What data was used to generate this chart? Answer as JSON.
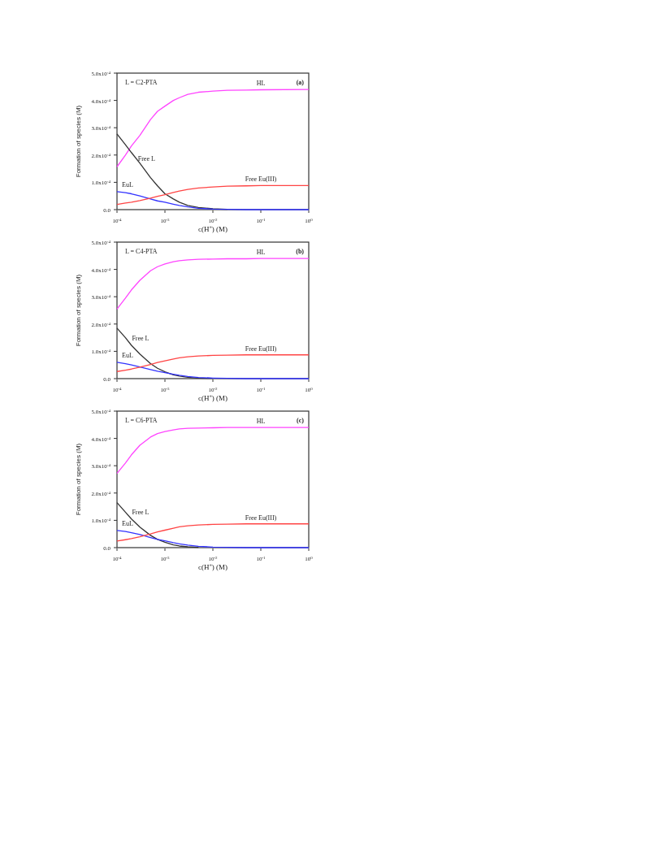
{
  "chart_data": [
    {
      "type": "line",
      "title": "L = C2-PTA",
      "annotations": [
        "(a)"
      ],
      "xlabel": "c(H$^{+}$) (M)",
      "ylabel": "Formation of species  (M)",
      "log": "x",
      "legend": false,
      "grid": false,
      "marker": "none",
      "line_style": "solid",
      "x": [
        0.0001,
        0.00015,
        0.0002,
        0.0003,
        0.0005,
        0.0007,
        0.001,
        0.0015,
        0.002,
        0.003,
        0.005,
        0.01,
        0.02,
        0.05,
        0.1,
        1
      ],
      "xlim": [
        0.0001,
        1
      ],
      "xticks": [
        {
          "value": 0.0001,
          "label": "10$^{-4}$"
        },
        {
          "value": 0.001,
          "label": "10$^{-3}$"
        },
        {
          "value": 0.01,
          "label": "10$^{-2}$"
        },
        {
          "value": 0.1,
          "label": "10$^{-1}$"
        },
        {
          "value": 1,
          "label": "10$^{0}$"
        }
      ],
      "ylim": [
        0,
        0.0005
      ],
      "yticks": [
        {
          "value": 0,
          "label": "0.0"
        },
        {
          "value": 0.0001,
          "label": "1.0x10$^{-4}$"
        },
        {
          "value": 0.0002,
          "label": "2.0x10$^{-4}$"
        },
        {
          "value": 0.0003,
          "label": "3.0x10$^{-4}$"
        },
        {
          "value": 0.0004,
          "label": "4.0x10$^{-4}$"
        },
        {
          "value": 0.0005,
          "label": "5.0x10$^{-4}$"
        }
      ],
      "series": [
        {
          "name": "HL",
          "color": "#ff44ff",
          "values": [
            0.000157,
            0.0002,
            0.000233,
            0.000272,
            0.00033,
            0.00036,
            0.000379,
            0.0004,
            0.00041,
            0.000422,
            0.00043,
            0.000434,
            0.000437,
            0.000438,
            0.000439,
            0.00044
          ]
        },
        {
          "name": "Free L",
          "color": "#333333",
          "values": [
            0.000277,
            0.000238,
            0.000209,
            0.00017,
            0.000117,
            8.7e-05,
            5.8e-05,
            3.9e-05,
            2.7e-05,
            1.5e-05,
            8e-06,
            3e-06,
            1e-06,
            null,
            null,
            null
          ]
        },
        {
          "name": "EuL",
          "color": "#3333ff",
          "values": [
            6.6e-05,
            6.2e-05,
            5.8e-05,
            5e-05,
            3.9e-05,
            3.2e-05,
            2.7e-05,
            2e-05,
            1.5e-05,
            1e-05,
            5e-06,
            2e-06,
            1e-06,
            0,
            0,
            0
          ]
        },
        {
          "name": "Free Eu(III)",
          "color": "#ff4444",
          "values": [
            1.9e-05,
            2.4e-05,
            2.7e-05,
            3.3e-05,
            4.2e-05,
            4.9e-05,
            5.5e-05,
            6.3e-05,
            6.8e-05,
            7.4e-05,
            7.9e-05,
            8.3e-05,
            8.6e-05,
            8.7e-05,
            8.8e-05,
            8.8e-05
          ]
        }
      ]
    },
    {
      "type": "line",
      "title": "L = C4-PTA",
      "annotations": [
        "(b)"
      ],
      "xlabel": "c(H$^{+}$) (M)",
      "ylabel": "Formation of species  (M)",
      "log": "x",
      "legend": false,
      "grid": false,
      "marker": "none",
      "line_style": "solid",
      "x": [
        0.0001,
        0.00015,
        0.0002,
        0.0003,
        0.0005,
        0.0007,
        0.001,
        0.0015,
        0.002,
        0.003,
        0.005,
        0.01,
        0.02,
        0.05,
        0.1,
        1
      ],
      "xlim": [
        0.0001,
        1
      ],
      "xticks": [
        {
          "value": 0.0001,
          "label": "10$^{-4}$"
        },
        {
          "value": 0.001,
          "label": "10$^{-3}$"
        },
        {
          "value": 0.01,
          "label": "10$^{-2}$"
        },
        {
          "value": 0.1,
          "label": "10$^{-1}$"
        },
        {
          "value": 1,
          "label": "10$^{0}$"
        }
      ],
      "ylim": [
        0,
        0.0005
      ],
      "yticks": [
        {
          "value": 0,
          "label": "0.0"
        },
        {
          "value": 0.0001,
          "label": "1.0x10$^{-4}$"
        },
        {
          "value": 0.0002,
          "label": "2.0x10$^{-4}$"
        },
        {
          "value": 0.0003,
          "label": "3.0x10$^{-4}$"
        },
        {
          "value": 0.0004,
          "label": "4.0x10$^{-4}$"
        },
        {
          "value": 0.0005,
          "label": "5.0x10$^{-4}$"
        }
      ],
      "series": [
        {
          "name": "HL",
          "color": "#ff44ff",
          "values": [
            0.000255,
            0.000295,
            0.000325,
            0.00036,
            0.000395,
            0.00041,
            0.00042,
            0.000428,
            0.000432,
            0.000435,
            0.000437,
            0.000438,
            0.000439,
            0.000439,
            0.00044,
            0.00044
          ]
        },
        {
          "name": "Free L",
          "color": "#333333",
          "values": [
            0.000185,
            0.00015,
            0.000122,
            9e-05,
            5.5e-05,
            3.8e-05,
            2.5e-05,
            1.4e-05,
            9e-06,
            5e-06,
            2e-06,
            1e-06,
            null,
            null,
            null,
            null
          ]
        },
        {
          "name": "EuL",
          "color": "#3333ff",
          "values": [
            6e-05,
            5.5e-05,
            5e-05,
            4.3e-05,
            3.3e-05,
            2.7e-05,
            2.2e-05,
            1.6e-05,
            1.2e-05,
            8e-06,
            4e-06,
            2e-06,
            1e-06,
            0,
            0,
            0
          ]
        },
        {
          "name": "Free Eu(III)",
          "color": "#ff4444",
          "values": [
            2.6e-05,
            3.1e-05,
            3.5e-05,
            4.2e-05,
            5.2e-05,
            5.9e-05,
            6.5e-05,
            7.2e-05,
            7.6e-05,
            8e-05,
            8.3e-05,
            8.5e-05,
            8.6e-05,
            8.7e-05,
            8.7e-05,
            8.7e-05
          ]
        }
      ]
    },
    {
      "type": "line",
      "title": "L = C6-PTA",
      "annotations": [
        "(c)"
      ],
      "xlabel": "c(H$^{+}$) (M)",
      "ylabel": "Formation of species  (M)",
      "log": "x",
      "legend": false,
      "grid": false,
      "marker": "none",
      "line_style": "solid",
      "x": [
        0.0001,
        0.00015,
        0.0002,
        0.0003,
        0.0005,
        0.0007,
        0.001,
        0.0015,
        0.002,
        0.003,
        0.005,
        0.01,
        0.02,
        0.05,
        0.1,
        1
      ],
      "xlim": [
        0.0001,
        1
      ],
      "xticks": [
        {
          "value": 0.0001,
          "label": "10$^{-4}$"
        },
        {
          "value": 0.001,
          "label": "10$^{-3}$"
        },
        {
          "value": 0.01,
          "label": "10$^{-2}$"
        },
        {
          "value": 0.1,
          "label": "10$^{-1}$"
        },
        {
          "value": 1,
          "label": "10$^{0}$"
        }
      ],
      "ylim": [
        0,
        0.0005
      ],
      "yticks": [
        {
          "value": 0,
          "label": "0.0"
        },
        {
          "value": 0.0001,
          "label": "1.0x10$^{-4}$"
        },
        {
          "value": 0.0002,
          "label": "2.0x10$^{-4}$"
        },
        {
          "value": 0.0003,
          "label": "3.0x10$^{-4}$"
        },
        {
          "value": 0.0004,
          "label": "4.0x10$^{-4}$"
        },
        {
          "value": 0.0005,
          "label": "5.0x10$^{-4}$"
        }
      ],
      "series": [
        {
          "name": "HL",
          "color": "#ff44ff",
          "values": [
            0.000272,
            0.00031,
            0.00034,
            0.000375,
            0.000405,
            0.000418,
            0.000425,
            0.000431,
            0.000435,
            0.000437,
            0.000438,
            0.000439,
            0.00044,
            0.00044,
            0.00044,
            0.00044
          ]
        },
        {
          "name": "Free L",
          "color": "#333333",
          "values": [
            0.000165,
            0.00013,
            0.000105,
            7.5e-05,
            4.5e-05,
            3e-05,
            2e-05,
            1e-05,
            6e-06,
            3e-06,
            1e-06,
            null,
            null,
            null,
            null,
            null
          ]
        },
        {
          "name": "EuL",
          "color": "#3333ff",
          "values": [
            6.3e-05,
            5.9e-05,
            5.5e-05,
            4.8e-05,
            3.7e-05,
            3e-05,
            2.5e-05,
            1.8e-05,
            1.4e-05,
            9e-06,
            5e-06,
            2e-06,
            1e-06,
            0,
            0,
            0
          ]
        },
        {
          "name": "Free Eu(III)",
          "color": "#ff4444",
          "values": [
            2.4e-05,
            2.9e-05,
            3.3e-05,
            4e-05,
            5e-05,
            5.8e-05,
            6.4e-05,
            7.1e-05,
            7.6e-05,
            8e-05,
            8.3e-05,
            8.5e-05,
            8.6e-05,
            8.7e-05,
            8.7e-05,
            8.7e-05
          ]
        }
      ]
    }
  ]
}
